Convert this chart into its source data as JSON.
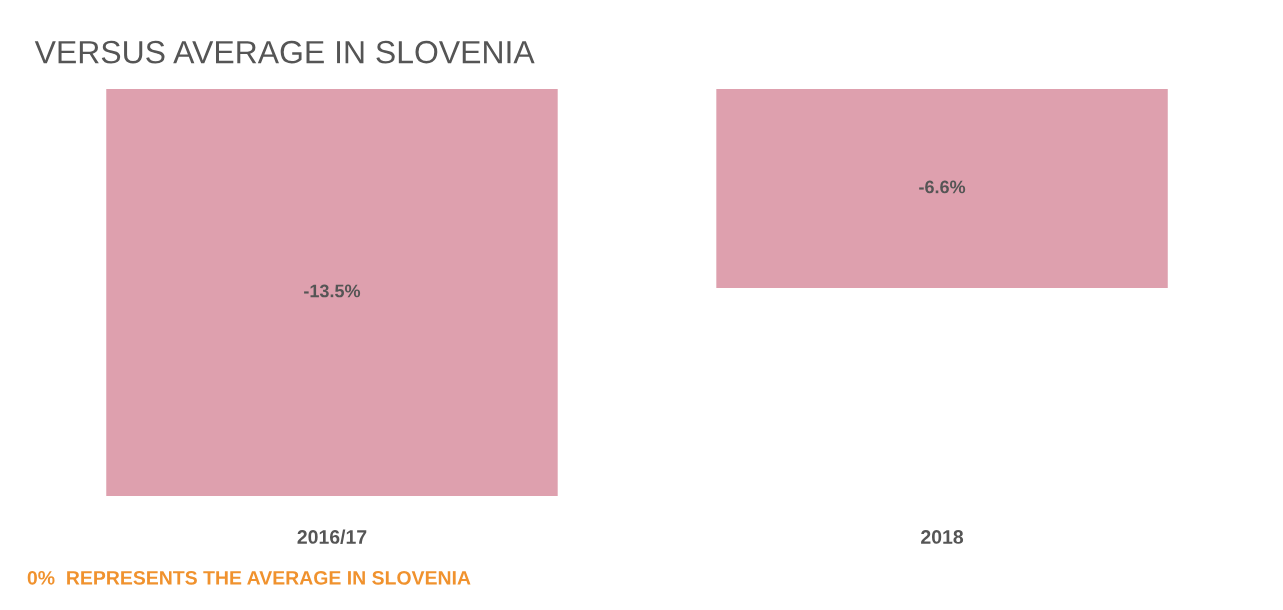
{
  "chart_data": {
    "type": "bar",
    "title": "VERSUS AVERAGE IN SLOVENIA",
    "categories": [
      "2016/17",
      "2018"
    ],
    "values": [
      -13.5,
      -6.6
    ],
    "value_labels": [
      "-13.5%",
      "-6.6%"
    ],
    "color": "#dea0ae",
    "annotations": [
      "0%  REPRESENTS THE AVERAGE IN SLOVENIA"
    ],
    "legend": false
  }
}
